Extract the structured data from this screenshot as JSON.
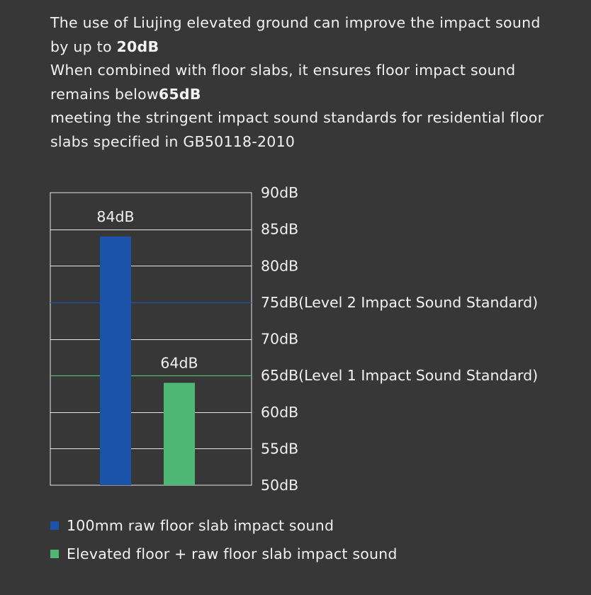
{
  "intro": {
    "line1_text": "The use of Liujing elevated ground can improve the impact sound by up to ",
    "line1_bold": "20dB",
    "line2_text": "When combined with floor slabs, it ensures floor impact sound remains below",
    "line2_bold": "65dB",
    "line3_text": "meeting the stringent impact sound standards for residential floor slabs specified in GB50118-2010"
  },
  "chart_data": {
    "type": "bar",
    "categories": [
      "100mm raw floor slab impact sound",
      "Elevated floor + raw floor slab impact sound"
    ],
    "values": [
      84,
      64
    ],
    "data_labels": [
      "84dB",
      "64dB"
    ],
    "colors": [
      "#1b53a8",
      "#4fb876"
    ],
    "ylim": [
      50,
      90
    ],
    "yticks": [
      50,
      55,
      60,
      65,
      70,
      75,
      80,
      85,
      90
    ],
    "ytick_labels": [
      "50dB",
      "55dB",
      "60dB",
      "65dB(Level 1 Impact Sound Standard)",
      "70dB",
      "75dB(Level 2 Impact Sound Standard)",
      "80dB",
      "85dB",
      "90dB"
    ],
    "reference_lines": [
      {
        "value": 75,
        "color": "#1b53a8"
      },
      {
        "value": 65,
        "color": "#4fb876"
      }
    ],
    "grid": true,
    "legend_position": "bottom-left"
  },
  "legend": {
    "items": [
      {
        "label": "100mm raw floor slab impact sound",
        "color": "#1b53a8"
      },
      {
        "label": "Elevated floor + raw floor slab impact sound",
        "color": "#4fb876"
      }
    ]
  }
}
